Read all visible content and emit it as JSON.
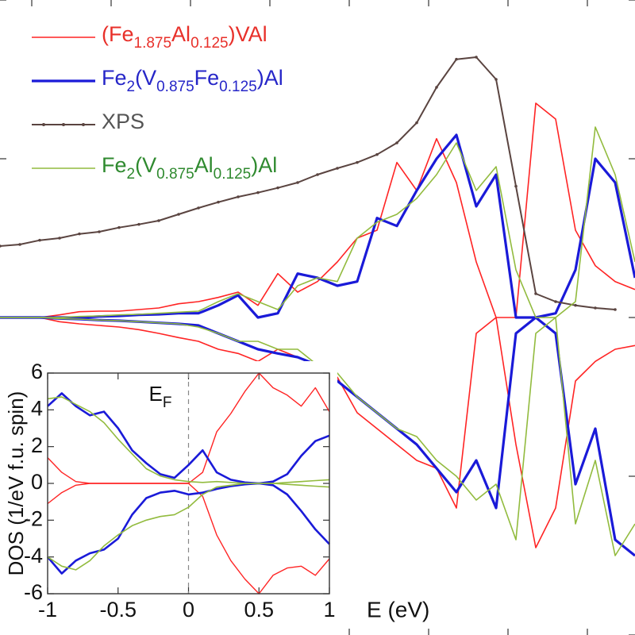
{
  "chart_data": [
    {
      "type": "line",
      "xlim": [
        -6.4,
        1.6
      ],
      "ylim": [
        -6,
        6
      ],
      "xticks": [
        -6,
        -5,
        -4,
        -3,
        -2,
        -1,
        0,
        1
      ],
      "yticks": [
        -6,
        -3,
        0,
        3,
        6
      ],
      "x": [
        -6.4,
        -6.15,
        -5.9,
        -5.65,
        -5.4,
        -5.15,
        -4.9,
        -4.65,
        -4.4,
        -4.15,
        -3.9,
        -3.65,
        -3.4,
        -3.15,
        -2.9,
        -2.65,
        -2.4,
        -2.15,
        -1.9,
        -1.65,
        -1.4,
        -1.15,
        -0.9,
        -0.65,
        -0.4,
        -0.15,
        0.1,
        0.35,
        0.6,
        0.85,
        1.1,
        1.35,
        1.6
      ],
      "series": [
        {
          "name": [
            "(Fe",
            "1.875",
            "Al",
            "0.125",
            ")VAl"
          ],
          "color": "#ff2424",
          "label_color": "#e8302a",
          "width": 1.6,
          "values": [
            0,
            0,
            0,
            0.05,
            0.11,
            0.12,
            0.12,
            0.15,
            0.18,
            0.26,
            0.3,
            0.38,
            0.48,
            0.23,
            0.83,
            0.48,
            0.68,
            1.05,
            1.5,
            1.65,
            2.93,
            2.4,
            3.38,
            2.55,
            1.05,
            0,
            0,
            4.05,
            3.75,
            1.65,
            0.98,
            0.68,
            0.53
          ],
          "values_down": [
            0,
            0,
            0,
            -0.08,
            -0.12,
            -0.15,
            -0.18,
            -0.23,
            -0.3,
            -0.38,
            -0.45,
            -0.6,
            -0.68,
            -0.83,
            -0.6,
            -0.75,
            -0.9,
            -1.13,
            -1.8,
            -2.1,
            -2.4,
            -2.7,
            -2.85,
            -3.6,
            -0.3,
            0,
            -2.4,
            -4.35,
            -3.6,
            -1.2,
            -0.83,
            -0.6,
            -0.53
          ]
        },
        {
          "name": [
            "Fe",
            "2",
            "(V",
            "0.875",
            "Fe",
            "0.125",
            ")Al"
          ],
          "color": "#1a1ad8",
          "label_color": "#2626c8",
          "width": 3.2,
          "values": [
            0,
            0,
            0,
            0,
            0,
            0.02,
            0.03,
            0.05,
            0.06,
            0.08,
            0.08,
            0.23,
            0.42,
            0,
            0.08,
            0.83,
            0.75,
            0.6,
            0.68,
            1.88,
            1.73,
            2.4,
            3,
            3.45,
            2.1,
            2.7,
            0,
            0,
            0.08,
            0.9,
            3,
            2.55,
            0.75
          ],
          "values_down": [
            0,
            0,
            0,
            -0.02,
            -0.03,
            -0.05,
            -0.06,
            -0.08,
            -0.1,
            -0.12,
            -0.15,
            -0.3,
            -0.45,
            -0.6,
            -0.68,
            -0.75,
            -0.9,
            -1.2,
            -1.5,
            -1.8,
            -2.1,
            -2.4,
            -2.85,
            -3.3,
            -2.7,
            -3.6,
            -0.3,
            0,
            -0.3,
            -3.15,
            -2.1,
            -4.2,
            -4.5
          ]
        },
        {
          "name": [
            "XPS"
          ],
          "color": "#5a4440",
          "label_color": "#555555",
          "width": 2,
          "markers": true,
          "values": [
            1.35,
            1.38,
            1.46,
            1.5,
            1.58,
            1.62,
            1.7,
            1.76,
            1.83,
            1.95,
            2.07,
            2.18,
            2.28,
            2.36,
            2.45,
            2.55,
            2.7,
            2.82,
            2.93,
            3.08,
            3.3,
            3.68,
            4.35,
            4.88,
            4.92,
            4.5,
            2.48,
            0.45,
            0.3,
            0.23,
            0.18,
            0.15,
            null
          ]
        },
        {
          "name": [
            "Fe",
            "2",
            "(V",
            "0.875",
            "Al",
            "0.125",
            ")Al"
          ],
          "color": "#92bb3e",
          "label_color": "#2f8a2f",
          "width": 1.6,
          "values": [
            0,
            0,
            0,
            0,
            0.02,
            0.03,
            0.05,
            0.06,
            0.08,
            0.1,
            0.12,
            0.3,
            0.45,
            0.3,
            0.15,
            0.6,
            0.75,
            0.68,
            1.5,
            1.8,
            1.95,
            2.25,
            2.7,
            3.3,
            2.4,
            2.85,
            0.9,
            0,
            0,
            0.3,
            3.6,
            2.7,
            1.05
          ],
          "values_down": [
            0,
            0,
            0,
            -0.02,
            -0.03,
            -0.05,
            -0.06,
            -0.08,
            -0.1,
            -0.12,
            -0.18,
            -0.3,
            -0.45,
            -0.45,
            -0.6,
            -0.6,
            -0.9,
            -1.05,
            -1.5,
            -1.8,
            -2.1,
            -2.25,
            -2.7,
            -3,
            -3.45,
            -3.15,
            -4.2,
            -0.3,
            0,
            -3.9,
            -2.7,
            -4.5,
            -3.9
          ]
        }
      ]
    },
    {
      "type": "line",
      "xlabel": "E (eV)",
      "ylabel": "DOS (1/eV f.u. spin)",
      "xlim": [
        -1,
        1
      ],
      "ylim": [
        -6,
        6
      ],
      "xticks": [
        -1,
        -0.5,
        0,
        0.5,
        1
      ],
      "yticks": [
        -6,
        -4,
        -2,
        0,
        2,
        4,
        6
      ],
      "fermi_level": {
        "label": [
          "E",
          "F"
        ],
        "x": 0
      },
      "x": [
        -1,
        -0.9,
        -0.8,
        -0.7,
        -0.6,
        -0.5,
        -0.4,
        -0.3,
        -0.2,
        -0.1,
        0,
        0.1,
        0.2,
        0.3,
        0.4,
        0.5,
        0.6,
        0.7,
        0.8,
        0.9,
        1
      ],
      "series": [
        {
          "color": "#ff2424",
          "width": 1.4,
          "values": [
            1.4,
            0.6,
            0.1,
            0,
            0,
            0,
            0,
            0,
            0,
            0,
            0,
            0.6,
            2.8,
            3.8,
            5,
            6,
            5.2,
            4.8,
            4.2,
            5.2,
            3.9
          ],
          "values_down": [
            -1.1,
            -0.5,
            -0.1,
            0,
            0,
            0,
            0,
            0,
            0,
            0,
            0,
            -0.7,
            -2.8,
            -4.2,
            -5.2,
            -6,
            -5,
            -4.6,
            -4.5,
            -5,
            -4.1
          ]
        },
        {
          "color": "#1a1ad8",
          "width": 2.6,
          "values": [
            4.2,
            4.9,
            4.2,
            3.7,
            3.9,
            3,
            1.8,
            1.1,
            0.5,
            0.3,
            1,
            1.8,
            0.6,
            0.2,
            0.05,
            0,
            0.1,
            0.5,
            1.5,
            2.3,
            2.6
          ],
          "values_down": [
            -4,
            -4.9,
            -4.2,
            -3.8,
            -3.6,
            -3,
            -1.7,
            -0.8,
            -0.5,
            -0.4,
            -0.6,
            -0.5,
            -0.3,
            -0.15,
            -0.05,
            0,
            -0.1,
            -0.6,
            -1.5,
            -2.5,
            -3.3
          ]
        },
        {
          "color": "#92bb3e",
          "width": 1.6,
          "values": [
            4.6,
            4.7,
            4.3,
            3.9,
            3.3,
            2.4,
            1.6,
            0.8,
            0.4,
            0.2,
            0.1,
            0.05,
            0.1,
            0.05,
            0,
            0,
            0,
            0.05,
            0.1,
            0.15,
            0.2
          ],
          "values_down": [
            -4,
            -4.5,
            -4.7,
            -4.2,
            -3.4,
            -2.8,
            -2.3,
            -2,
            -1.8,
            -1.7,
            -1.3,
            -0.6,
            -0.2,
            -0.1,
            0,
            0,
            0,
            -0.05,
            -0.1,
            -0.15,
            -0.2
          ]
        }
      ]
    }
  ]
}
